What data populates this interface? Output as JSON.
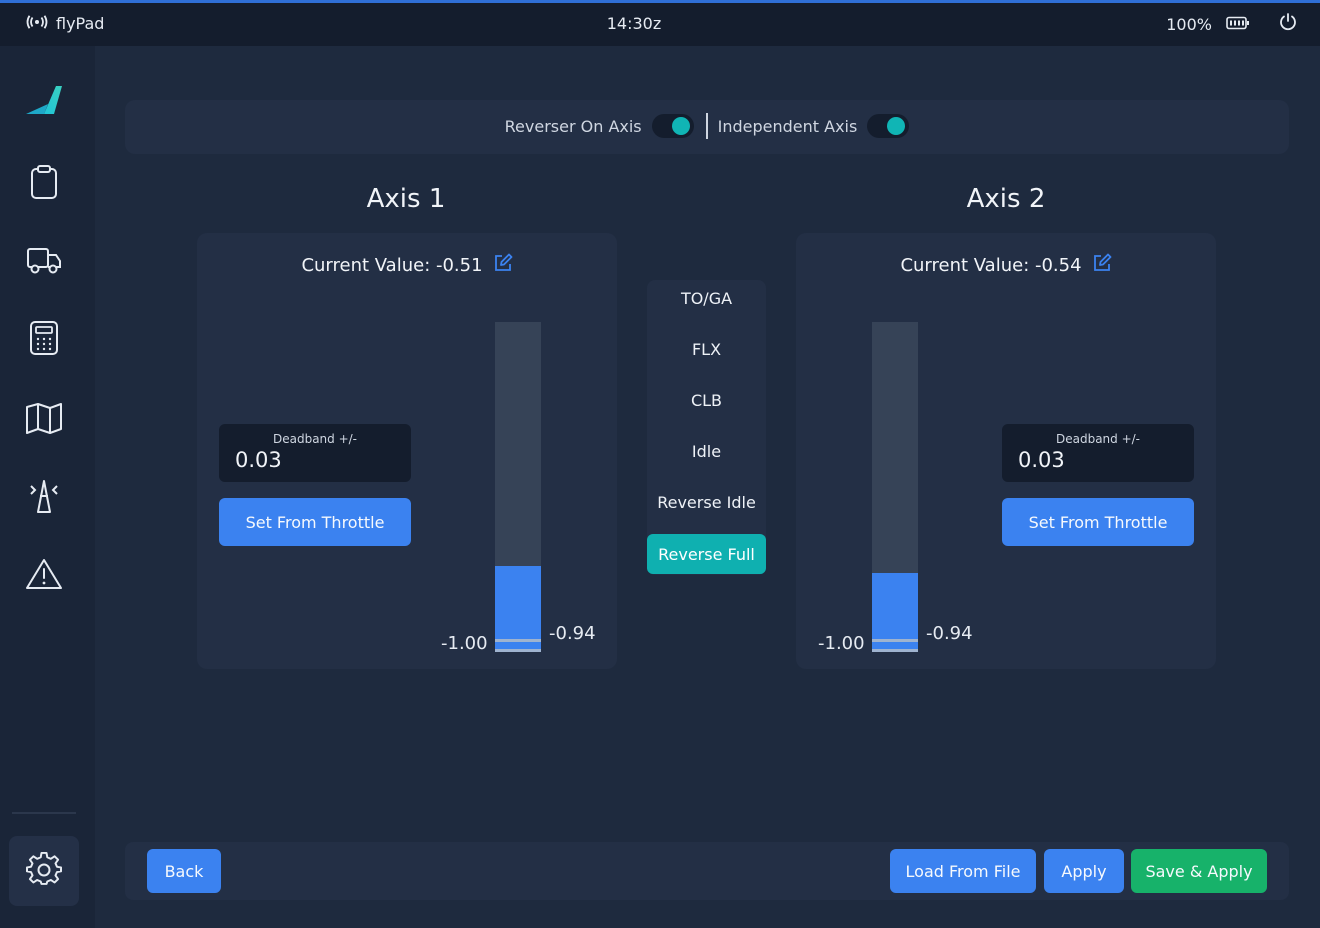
{
  "status_bar": {
    "app_name": "flyPad",
    "time": "14:30z",
    "battery": "100%",
    "icons": [
      "wireless-icon",
      "battery-icon",
      "power-icon"
    ]
  },
  "sidebar": {
    "items": [
      {
        "name": "logo",
        "icon": "flybywire-logo"
      },
      {
        "name": "dispatch",
        "icon": "clipboard-icon"
      },
      {
        "name": "ground",
        "icon": "truck-icon"
      },
      {
        "name": "performance",
        "icon": "calculator-icon"
      },
      {
        "name": "navigation",
        "icon": "map-icon"
      },
      {
        "name": "atc",
        "icon": "tower-icon"
      },
      {
        "name": "failures",
        "icon": "warning-icon"
      },
      {
        "name": "settings",
        "icon": "gear-icon"
      }
    ]
  },
  "toggles": {
    "reverser_label": "Reverser On Axis",
    "reverser_on": true,
    "independent_label": "Independent Axis",
    "independent_on": true
  },
  "axis1": {
    "title": "Axis 1",
    "current_value": "Current Value: -0.51",
    "deadband_label": "Deadband +/-",
    "deadband_value": "0.03",
    "set_button": "Set From Throttle",
    "bar_min": "-1.00",
    "bar_value_label": "-0.94",
    "fill_fraction": 0.26
  },
  "axis2": {
    "title": "Axis 2",
    "current_value": "Current Value: -0.54",
    "deadband_label": "Deadband +/-",
    "deadband_value": "0.03",
    "set_button": "Set From Throttle",
    "bar_min": "-1.00",
    "bar_value_label": "-0.94",
    "fill_fraction": 0.24
  },
  "detents": {
    "items": [
      "TO/GA",
      "FLX",
      "CLB",
      "Idle",
      "Reverse Idle",
      "Reverse Full"
    ],
    "active": "Reverse Full"
  },
  "footer": {
    "back": "Back",
    "load": "Load From File",
    "apply": "Apply",
    "save_apply": "Save & Apply"
  },
  "colors": {
    "accent_blue": "#3b82f0",
    "accent_teal": "#0fb0b0",
    "save_green": "#17b26a"
  }
}
